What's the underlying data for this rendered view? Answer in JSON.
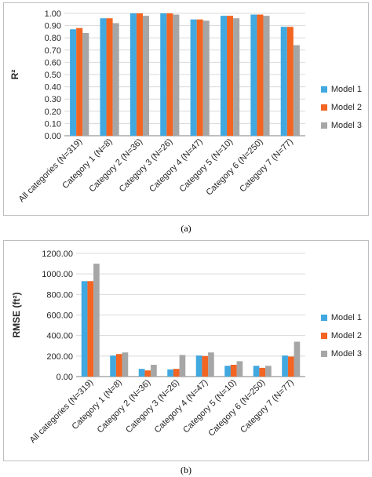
{
  "chart_data": [
    {
      "type": "bar",
      "ylabel": "R²",
      "ylim": [
        0,
        1.0
      ],
      "yticks": [
        "0.00",
        "0.10",
        "0.20",
        "0.30",
        "0.40",
        "0.50",
        "0.60",
        "0.70",
        "0.80",
        "0.90",
        "1.00"
      ],
      "categories": [
        "All categories (N=319)",
        "Category 1 (N=8)",
        "Category 2 (N=36)",
        "Category 3 (N=26)",
        "Category 4 (N=47)",
        "Category 5 (N=10)",
        "Category 6 (N=250)",
        "Category 7 (N=77)"
      ],
      "series": [
        {
          "name": "Model 1",
          "values": [
            0.87,
            0.96,
            1.0,
            1.0,
            0.95,
            0.98,
            0.99,
            0.89
          ]
        },
        {
          "name": "Model 2",
          "values": [
            0.88,
            0.96,
            1.0,
            1.0,
            0.95,
            0.98,
            0.99,
            0.89
          ]
        },
        {
          "name": "Model 3",
          "values": [
            0.84,
            0.92,
            0.98,
            0.99,
            0.94,
            0.96,
            0.98,
            0.74
          ]
        }
      ],
      "legend_position": "right",
      "grid": true,
      "caption": "(a)"
    },
    {
      "type": "bar",
      "ylabel": "RMSE (ft²)",
      "ylim": [
        0,
        1200
      ],
      "yticks": [
        "0.00",
        "200.00",
        "400.00",
        "600.00",
        "800.00",
        "1000.00",
        "1200.00"
      ],
      "categories": [
        "All categories (N=319)",
        "Category 1 (N=8)",
        "Category 2 (N=36)",
        "Category 3 (N=26)",
        "Category 4 (N=47)",
        "Category 5 (N=10)",
        "Category 6 (N=250)",
        "Category 7 (N=77)"
      ],
      "series": [
        {
          "name": "Model 1",
          "values": [
            930,
            205,
            75,
            70,
            205,
            105,
            105,
            205
          ]
        },
        {
          "name": "Model 2",
          "values": [
            930,
            220,
            60,
            75,
            200,
            115,
            85,
            195
          ]
        },
        {
          "name": "Model 3",
          "values": [
            1100,
            235,
            115,
            210,
            235,
            150,
            105,
            340
          ]
        }
      ],
      "legend_position": "right",
      "grid": true,
      "caption": "(b)"
    }
  ],
  "colors": {
    "Model 1": "#41a8e0",
    "Model 2": "#f26522",
    "Model 3": "#a6a6a6",
    "grid": "#d9d9d9",
    "axis": "#7f7f7f",
    "text": "#262626"
  }
}
